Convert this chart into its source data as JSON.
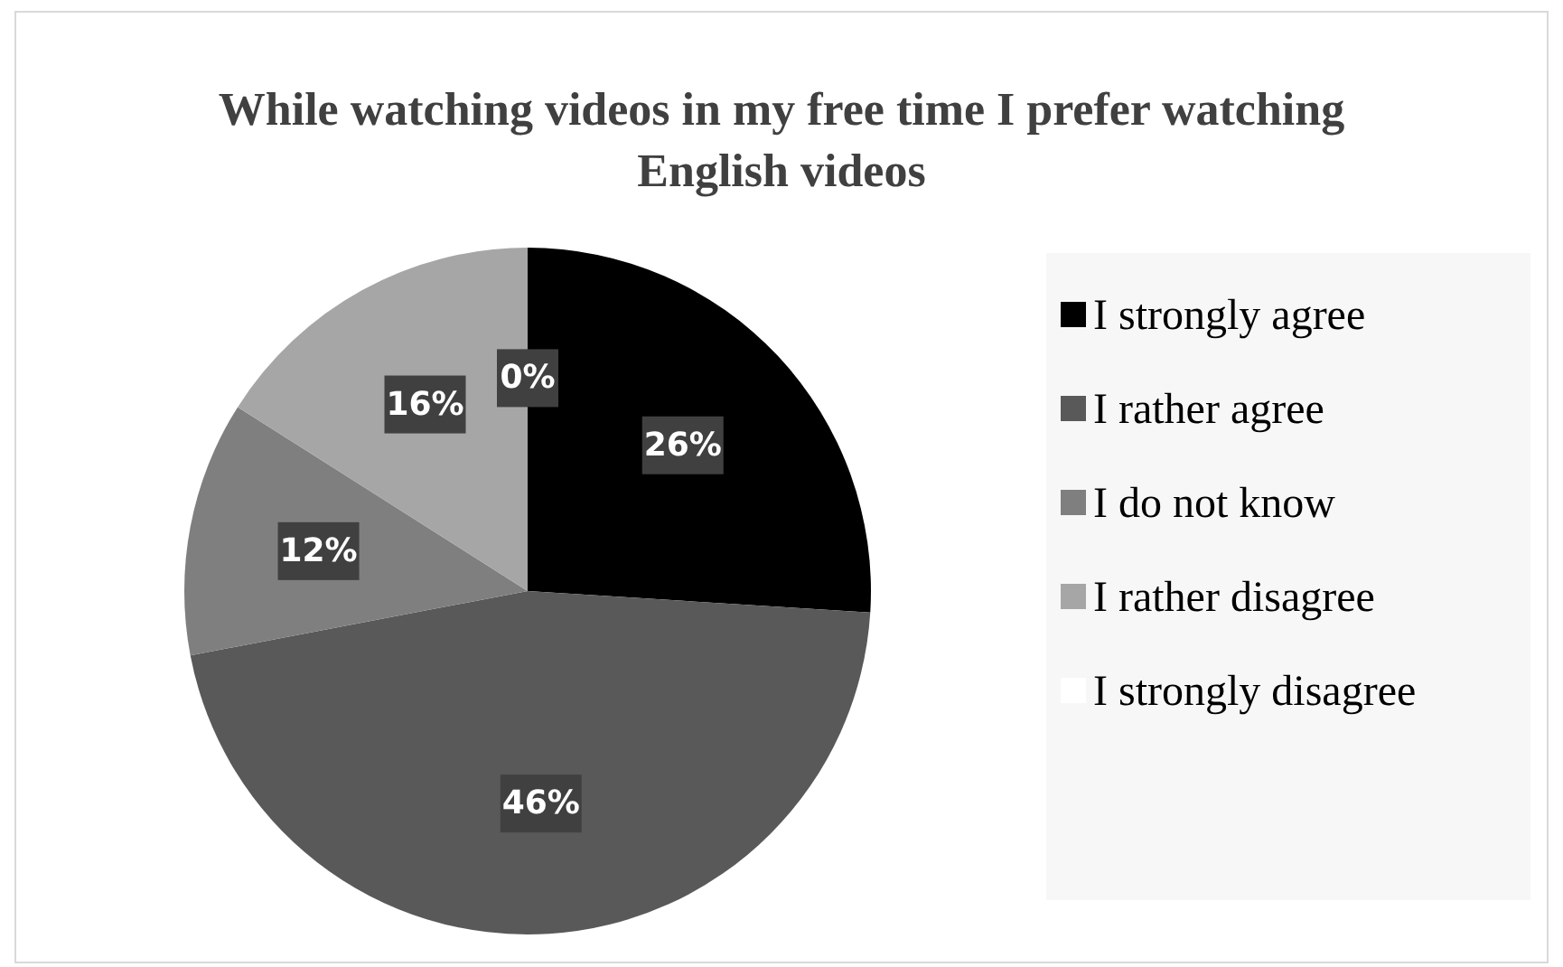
{
  "chart_data": {
    "type": "pie",
    "title": "While watching videos in my free time I prefer watching English videos",
    "categories": [
      "I strongly agree",
      "I rather agree",
      "I do not know",
      "I rather disagree",
      "I strongly disagree"
    ],
    "values": [
      26,
      46,
      12,
      16,
      0
    ],
    "colors": [
      "#000000",
      "#595959",
      "#7f7f7f",
      "#a6a6a6",
      "#ffffff"
    ],
    "value_labels": [
      "26%",
      "46%",
      "12%",
      "16%",
      "0%"
    ],
    "legend": "right"
  }
}
